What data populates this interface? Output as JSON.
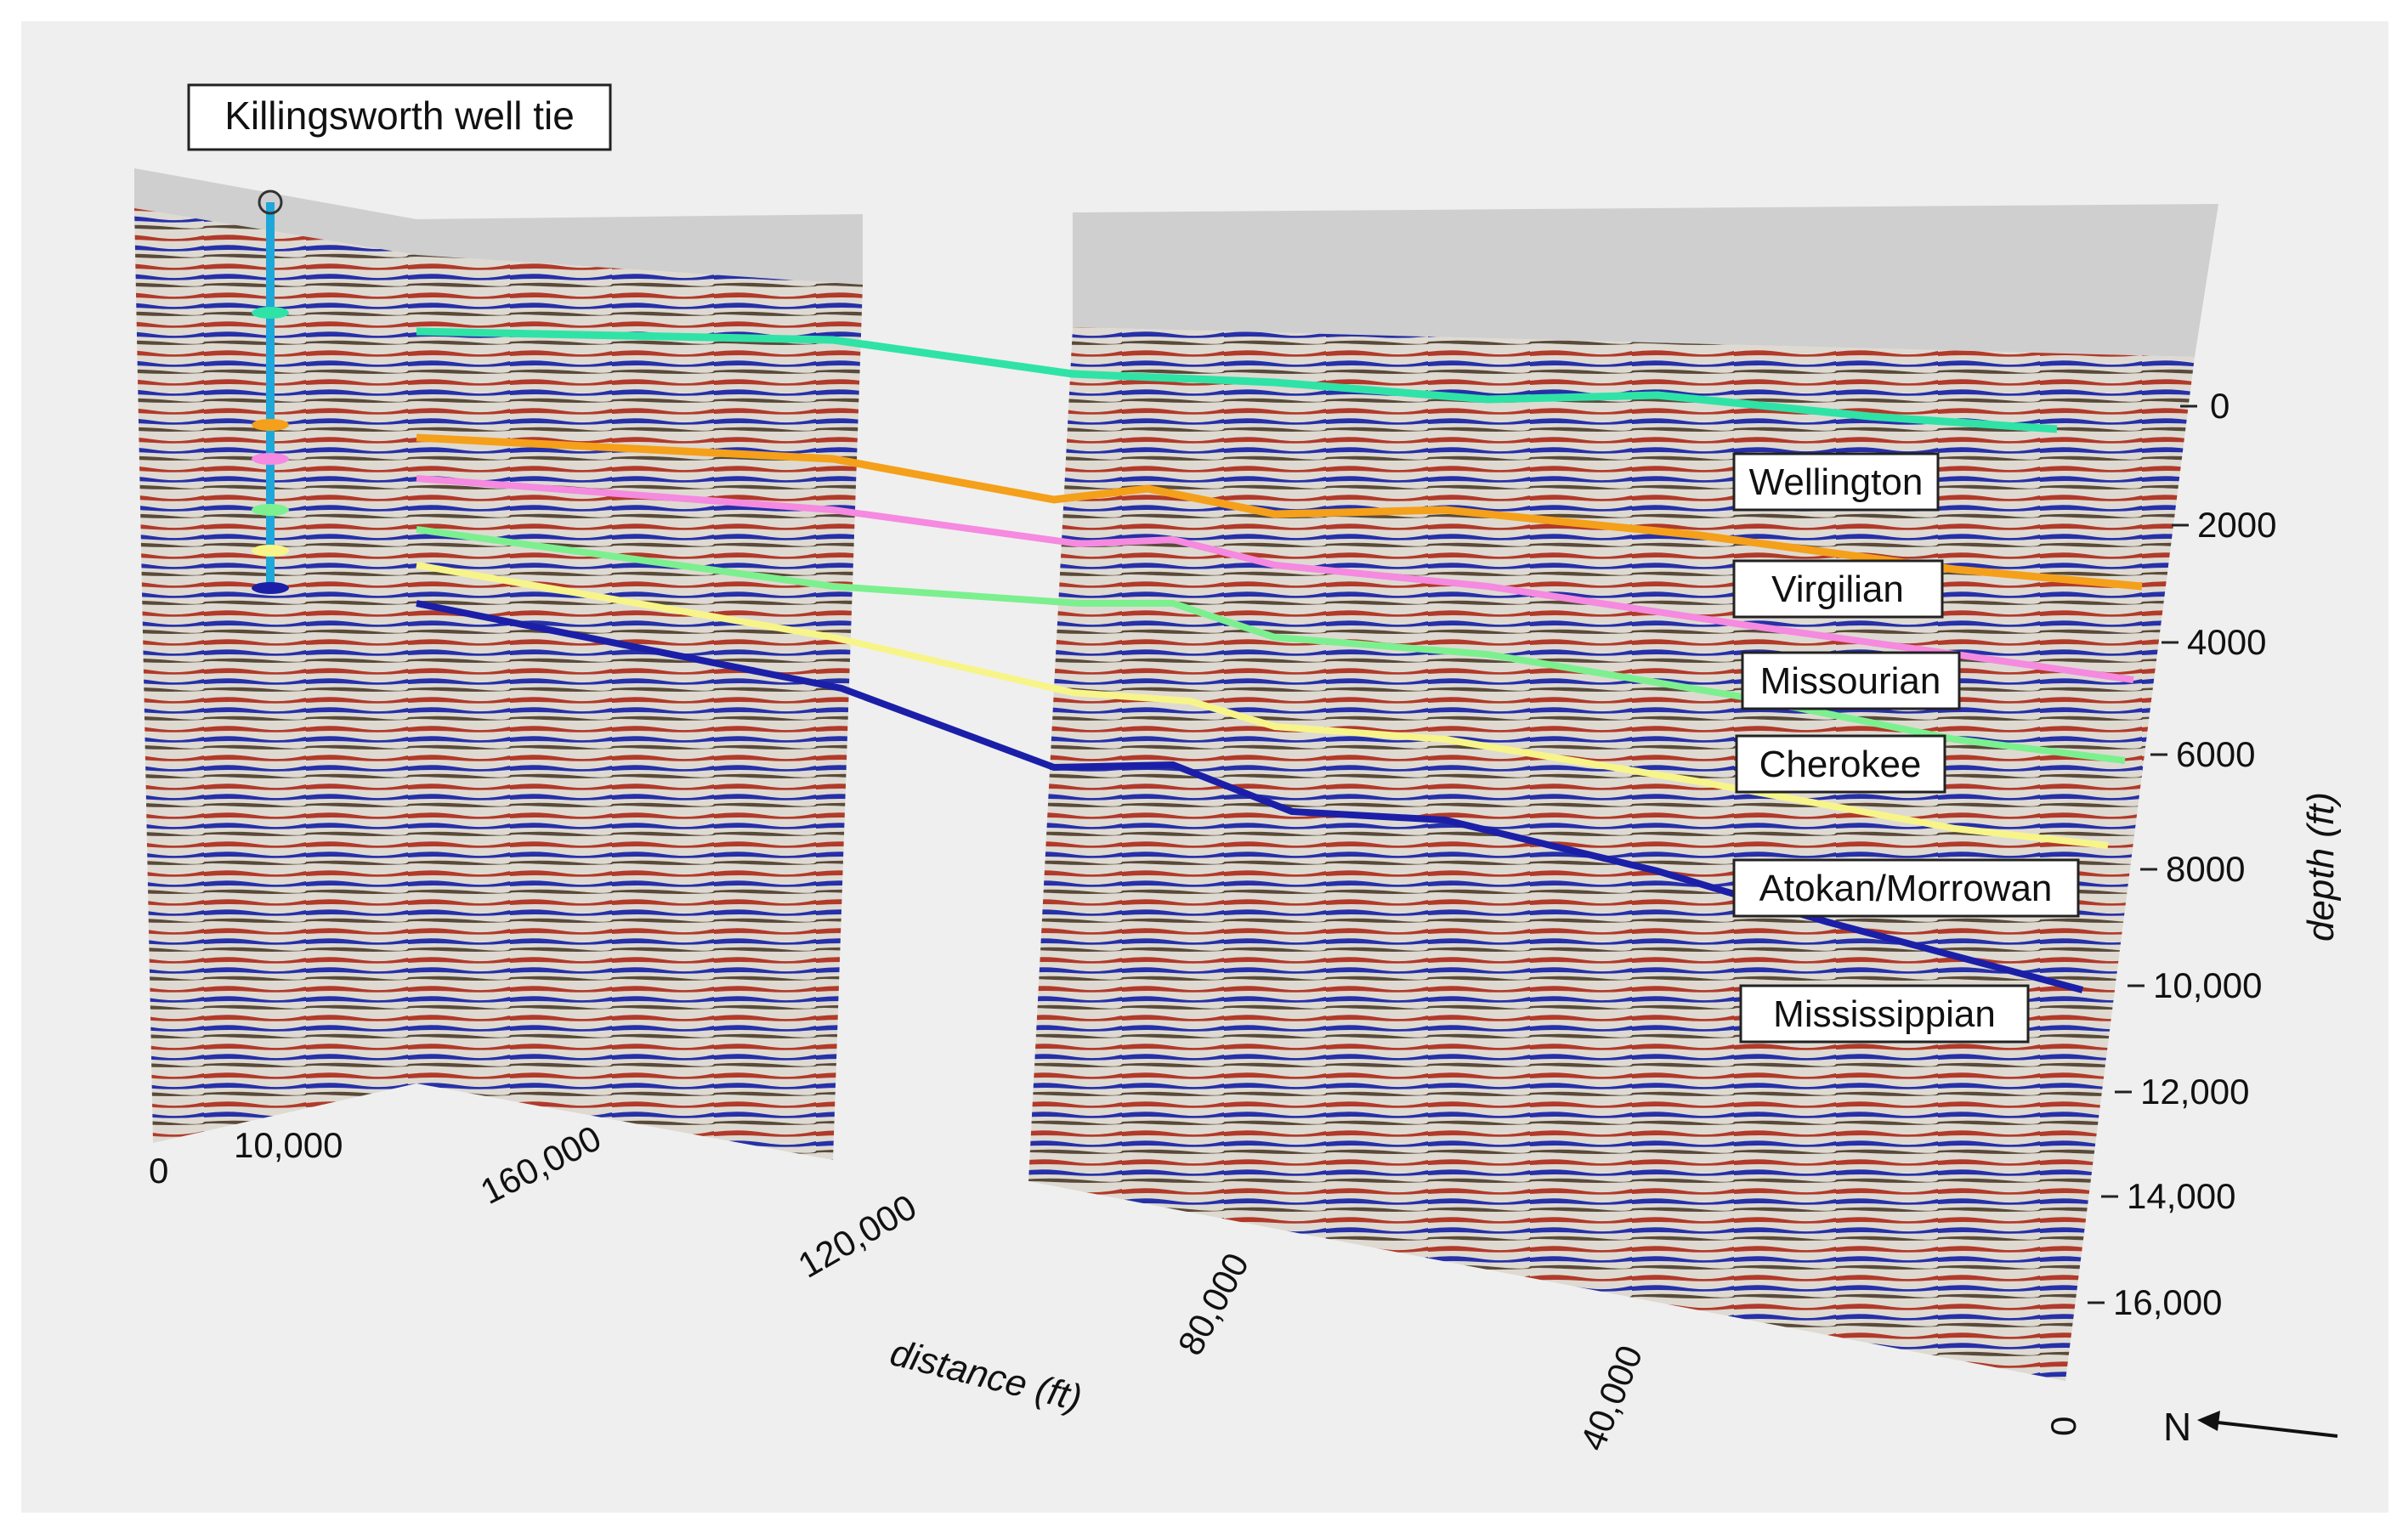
{
  "title": "Killingsworth well tie",
  "north_label": "N",
  "colors": {
    "background": "#efefef",
    "section_fill": "#8c8884",
    "section_top": "#cfcfcf",
    "seismic_red": "#b13a2a",
    "seismic_blue": "#2630a8",
    "seismic_light": "#dedad2",
    "well": "#1ea7d8"
  },
  "depth_axis": {
    "title": "depth (ft)",
    "ticks": [
      "0",
      "2000",
      "4000",
      "6000",
      "8000",
      "10,000",
      "12,000",
      "14,000",
      "16,000"
    ]
  },
  "distance_axis": {
    "title": "distance (ft)",
    "left_panel_ticks": [
      "0",
      "10,000"
    ],
    "ticks": [
      "160,000",
      "120,000",
      "80,000",
      "40,000",
      "0"
    ]
  },
  "horizons": [
    {
      "name": "Wellington",
      "color": "#2fe3a6"
    },
    {
      "name": "Virgilian",
      "color": "#f5a01a"
    },
    {
      "name": "Missourian",
      "color": "#f58ae0"
    },
    {
      "name": "Cherokee",
      "color": "#7cf08f"
    },
    {
      "name": "Atokan/Morrowan",
      "color": "#f7f58a"
    },
    {
      "name": "Mississippian",
      "color": "#1b1fa8"
    }
  ]
}
